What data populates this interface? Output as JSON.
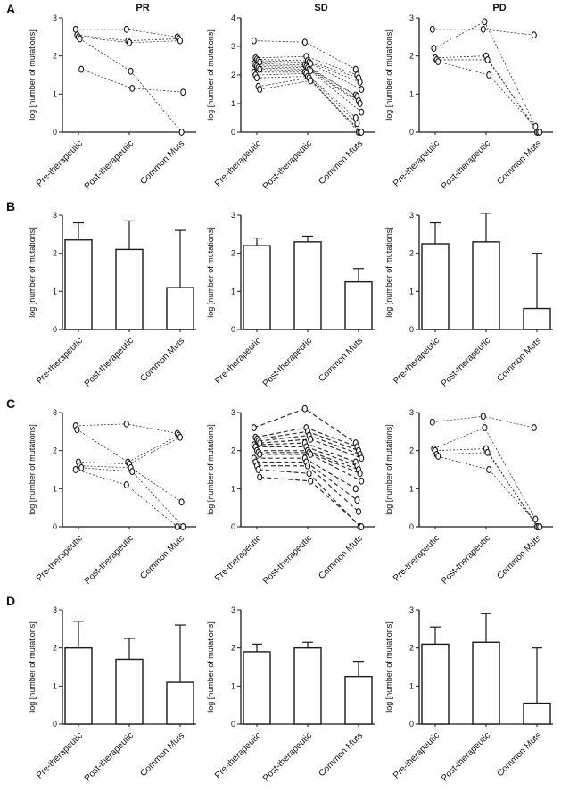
{
  "row_labels": [
    "A",
    "B",
    "C",
    "D"
  ],
  "shared": {
    "ylabel": "log [number of mutations]",
    "categories": [
      "Pre-therapeutic",
      "Post-therapeutic",
      "Common Muts"
    ],
    "axis_color": "#1a1a1a",
    "bar_fill": "#ffffff"
  },
  "chart_data": [
    {
      "id": "A-PR",
      "type": "line",
      "title": "PR",
      "ylim": [
        0,
        3
      ],
      "yticks": [
        0,
        1,
        2,
        3
      ],
      "line_style": "dotted",
      "series": [
        [
          2.7,
          2.7,
          2.5
        ],
        [
          2.55,
          2.4,
          2.45
        ],
        [
          2.5,
          2.35,
          2.4
        ],
        [
          2.45,
          1.6,
          0
        ],
        [
          1.65,
          1.15,
          1.05
        ]
      ]
    },
    {
      "id": "A-SD",
      "type": "line",
      "title": "SD",
      "ylim": [
        0,
        4
      ],
      "yticks": [
        0,
        1,
        2,
        3,
        4
      ],
      "line_style": "dotted",
      "series": [
        [
          3.2,
          3.15,
          2.2
        ],
        [
          2.6,
          2.65,
          2.0
        ],
        [
          2.55,
          2.5,
          1.9
        ],
        [
          2.5,
          2.45,
          1.75
        ],
        [
          2.45,
          2.4,
          1.5
        ],
        [
          2.4,
          2.35,
          1.3
        ],
        [
          2.35,
          2.3,
          1.25
        ],
        [
          2.3,
          2.25,
          1.1
        ],
        [
          2.25,
          2.2,
          1.0
        ],
        [
          2.2,
          2.15,
          0.7
        ],
        [
          2.1,
          2.1,
          0.5
        ],
        [
          2.0,
          2.05,
          0.3
        ],
        [
          1.9,
          1.95,
          0
        ],
        [
          1.6,
          1.9,
          0
        ],
        [
          1.5,
          1.8,
          0
        ]
      ]
    },
    {
      "id": "A-PD",
      "type": "line",
      "title": "PD",
      "ylim": [
        0,
        3
      ],
      "yticks": [
        0,
        1,
        2,
        3
      ],
      "line_style": "dotted",
      "series": [
        [
          2.7,
          2.7,
          2.55
        ],
        [
          2.2,
          2.9,
          0.15
        ],
        [
          1.95,
          2.0,
          0
        ],
        [
          1.9,
          1.9,
          0
        ],
        [
          1.85,
          1.5,
          0
        ]
      ]
    },
    {
      "id": "B-PR",
      "type": "bar",
      "ylim": [
        0,
        3
      ],
      "yticks": [
        0,
        1,
        2,
        3
      ],
      "values": [
        2.35,
        2.1,
        1.1
      ],
      "errors": [
        0.45,
        0.75,
        1.5
      ]
    },
    {
      "id": "B-SD",
      "type": "bar",
      "ylim": [
        0,
        3
      ],
      "yticks": [
        0,
        1,
        2,
        3
      ],
      "values": [
        2.2,
        2.3,
        1.25
      ],
      "errors": [
        0.2,
        0.15,
        0.35
      ]
    },
    {
      "id": "B-PD",
      "type": "bar",
      "ylim": [
        0,
        3
      ],
      "yticks": [
        0,
        1,
        2,
        3
      ],
      "values": [
        2.25,
        2.3,
        0.55
      ],
      "errors": [
        0.55,
        0.75,
        1.45
      ]
    },
    {
      "id": "C-PR",
      "type": "line",
      "ylim": [
        0,
        3
      ],
      "yticks": [
        0,
        1,
        2,
        3
      ],
      "line_style": "dotted",
      "series": [
        [
          2.65,
          2.7,
          2.45
        ],
        [
          2.55,
          1.7,
          2.4
        ],
        [
          1.7,
          1.65,
          2.35
        ],
        [
          1.6,
          1.55,
          0.65
        ],
        [
          1.55,
          1.45,
          0
        ],
        [
          1.5,
          1.1,
          0
        ]
      ]
    },
    {
      "id": "C-SD",
      "type": "line",
      "ylim": [
        0,
        3
      ],
      "yticks": [
        0,
        1,
        2,
        3
      ],
      "line_style": "dashed",
      "series": [
        [
          2.6,
          3.1,
          2.2
        ],
        [
          2.35,
          2.6,
          2.1
        ],
        [
          2.3,
          2.5,
          2.0
        ],
        [
          2.25,
          2.4,
          1.9
        ],
        [
          2.2,
          2.3,
          1.8
        ],
        [
          2.15,
          2.2,
          1.7
        ],
        [
          2.1,
          2.1,
          1.6
        ],
        [
          2.0,
          2.0,
          1.5
        ],
        [
          1.95,
          1.95,
          1.4
        ],
        [
          1.9,
          1.9,
          1.2
        ],
        [
          1.8,
          1.8,
          1.0
        ],
        [
          1.7,
          1.7,
          0.7
        ],
        [
          1.6,
          1.6,
          0.4
        ],
        [
          1.5,
          1.4,
          0
        ],
        [
          1.3,
          1.2,
          0
        ]
      ]
    },
    {
      "id": "C-PD",
      "type": "line",
      "ylim": [
        0,
        3
      ],
      "yticks": [
        0,
        1,
        2,
        3
      ],
      "line_style": "dotted",
      "series": [
        [
          2.75,
          2.9,
          2.6
        ],
        [
          2.05,
          2.6,
          0.2
        ],
        [
          2.0,
          2.05,
          0
        ],
        [
          1.9,
          1.95,
          0
        ],
        [
          1.85,
          1.5,
          0
        ]
      ]
    },
    {
      "id": "D-PR",
      "type": "bar",
      "ylim": [
        0,
        3
      ],
      "yticks": [
        0,
        1,
        2,
        3
      ],
      "values": [
        2.0,
        1.7,
        1.1
      ],
      "errors": [
        0.7,
        0.55,
        1.5
      ]
    },
    {
      "id": "D-SD",
      "type": "bar",
      "ylim": [
        0,
        3
      ],
      "yticks": [
        0,
        1,
        2,
        3
      ],
      "values": [
        1.9,
        2.0,
        1.25
      ],
      "errors": [
        0.2,
        0.15,
        0.4
      ]
    },
    {
      "id": "D-PD",
      "type": "bar",
      "ylim": [
        0,
        3
      ],
      "yticks": [
        0,
        1,
        2,
        3
      ],
      "values": [
        2.1,
        2.15,
        0.55
      ],
      "errors": [
        0.45,
        0.75,
        1.45
      ]
    }
  ]
}
